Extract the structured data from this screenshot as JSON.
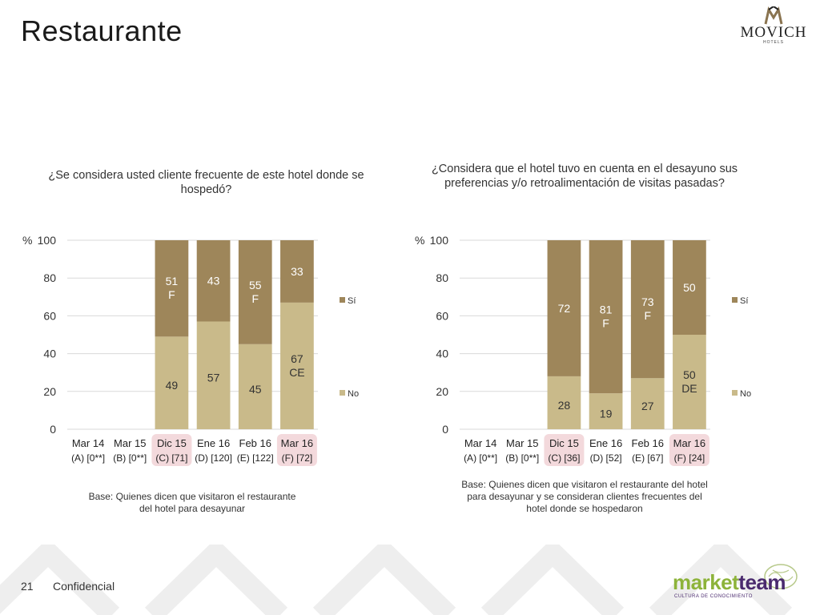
{
  "page": {
    "title": "Restaurante",
    "footer_number": "21",
    "footer_label": "Confidencial"
  },
  "logos": {
    "movich_text": "MOVICH",
    "movich_sub": "HOTELS",
    "marketteam_a": "market",
    "marketteam_b": "team",
    "marketteam_sub": "CULTURA DE CONOCIMIENTO"
  },
  "colors": {
    "si": "#9e865a",
    "no": "#c9ba8a",
    "highlight": "#f3d9dc",
    "grid": "#d9d9d9"
  },
  "chart_data": [
    {
      "type": "bar",
      "stacked": true,
      "title": "¿Se considera usted cliente frecuente de este hotel donde se hospedó?",
      "ylabel": "%",
      "ylim": [
        0,
        100
      ],
      "yticks": [
        0,
        20,
        40,
        60,
        80,
        100
      ],
      "grid": true,
      "legend_position": "right",
      "categories": [
        "Mar 14",
        "Mar 15",
        "Dic 15",
        "Ene 16",
        "Feb 16",
        "Mar 16"
      ],
      "category_sub": [
        "(A) [0**]",
        "(B) [0**]",
        "(C) [71]",
        "(D) [120]",
        "(E) [122]",
        "(F) [72]"
      ],
      "highlighted": [
        2,
        5
      ],
      "series": [
        {
          "name": "No",
          "values": [
            null,
            null,
            49,
            57,
            45,
            67
          ],
          "sig": [
            "",
            "",
            "",
            "",
            "",
            "CE"
          ]
        },
        {
          "name": "Sí",
          "values": [
            null,
            null,
            51,
            43,
            55,
            33
          ],
          "sig": [
            "",
            "",
            "F",
            "",
            "F",
            ""
          ]
        }
      ],
      "base_note": "Base: Quienes dicen que visitaron el restaurante del hotel para desayunar"
    },
    {
      "type": "bar",
      "stacked": true,
      "title": "¿Considera que el hotel tuvo en cuenta en el desayuno sus preferencias y/o retroalimentación de visitas pasadas?",
      "ylabel": "%",
      "ylim": [
        0,
        100
      ],
      "yticks": [
        0,
        20,
        40,
        60,
        80,
        100
      ],
      "grid": true,
      "legend_position": "right",
      "categories": [
        "Mar 14",
        "Mar 15",
        "Dic 15",
        "Ene 16",
        "Feb 16",
        "Mar 16"
      ],
      "category_sub": [
        "(A) [0**]",
        "(B) [0**]",
        "(C) [36]",
        "(D) [52]",
        "(E) [67]",
        "(F) [24]"
      ],
      "highlighted": [
        2,
        5
      ],
      "series": [
        {
          "name": "No",
          "values": [
            null,
            null,
            28,
            19,
            27,
            50
          ],
          "sig": [
            "",
            "",
            "",
            "",
            "",
            "DE"
          ]
        },
        {
          "name": "Sí",
          "values": [
            null,
            null,
            72,
            81,
            73,
            50
          ],
          "sig": [
            "",
            "",
            "",
            "F",
            "F",
            ""
          ]
        }
      ],
      "base_note": "Base: Quienes dicen que visitaron el restaurante del hotel para desayunar y se consideran clientes frecuentes del hotel donde se hospedaron"
    }
  ]
}
